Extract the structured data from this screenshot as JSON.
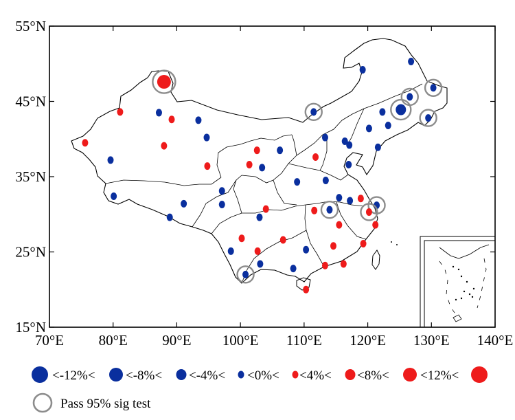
{
  "map": {
    "lat_ticks": [
      {
        "lat": 55,
        "label": "55°N"
      },
      {
        "lat": 45,
        "label": "45°N"
      },
      {
        "lat": 35,
        "label": "35°N"
      },
      {
        "lat": 25,
        "label": "25°N"
      },
      {
        "lat": 15,
        "label": "15°N"
      }
    ],
    "lon_ticks": [
      {
        "lon": 70,
        "label": "70°E"
      },
      {
        "lon": 80,
        "label": "80°E"
      },
      {
        "lon": 90,
        "label": "90°E"
      },
      {
        "lon": 100,
        "label": "100°E"
      },
      {
        "lon": 110,
        "label": "110°E"
      },
      {
        "lon": 120,
        "label": "120°E"
      },
      {
        "lon": 130,
        "label": "130°E"
      },
      {
        "lon": 140,
        "label": "140°E"
      }
    ],
    "lon_range": [
      70,
      140
    ],
    "lat_range": [
      15,
      55
    ],
    "colors": {
      "negative": "#0a2f9e",
      "positive": "#ee1b1b",
      "sig_ring": "#8c8c8c",
      "border": "#000000"
    }
  },
  "stations": [
    {
      "lon": 88.0,
      "lat": 47.6,
      "class": "8-12pos",
      "sig": true
    },
    {
      "lon": 81.1,
      "lat": 43.6,
      "class": "0-4pos",
      "sig": false
    },
    {
      "lon": 75.6,
      "lat": 39.5,
      "class": "0-4pos",
      "sig": false
    },
    {
      "lon": 87.2,
      "lat": 43.5,
      "class": "0-4neg",
      "sig": false
    },
    {
      "lon": 89.2,
      "lat": 42.6,
      "class": "0-4pos",
      "sig": false
    },
    {
      "lon": 93.4,
      "lat": 42.5,
      "class": "0-4neg",
      "sig": false
    },
    {
      "lon": 88.0,
      "lat": 39.1,
      "class": "0-4pos",
      "sig": false
    },
    {
      "lon": 94.7,
      "lat": 40.2,
      "class": "0-4neg",
      "sig": false
    },
    {
      "lon": 94.8,
      "lat": 36.4,
      "class": "0-4pos",
      "sig": false
    },
    {
      "lon": 79.6,
      "lat": 37.2,
      "class": "0-4neg",
      "sig": false
    },
    {
      "lon": 80.1,
      "lat": 32.4,
      "class": "0-4neg",
      "sig": false
    },
    {
      "lon": 91.1,
      "lat": 31.4,
      "class": "0-4neg",
      "sig": false
    },
    {
      "lon": 88.9,
      "lat": 29.6,
      "class": "0-4neg",
      "sig": false
    },
    {
      "lon": 97.1,
      "lat": 33.1,
      "class": "0-4neg",
      "sig": false
    },
    {
      "lon": 97.1,
      "lat": 31.3,
      "class": "0-4neg",
      "sig": false
    },
    {
      "lon": 102.6,
      "lat": 38.5,
      "class": "0-4pos",
      "sig": false
    },
    {
      "lon": 101.4,
      "lat": 36.6,
      "class": "0-4pos",
      "sig": false
    },
    {
      "lon": 103.4,
      "lat": 36.2,
      "class": "0-4neg",
      "sig": false
    },
    {
      "lon": 106.2,
      "lat": 38.5,
      "class": "0-4neg",
      "sig": false
    },
    {
      "lon": 108.9,
      "lat": 34.3,
      "class": "0-4neg",
      "sig": false
    },
    {
      "lon": 111.5,
      "lat": 43.6,
      "class": "0-4neg",
      "sig": true
    },
    {
      "lon": 111.8,
      "lat": 37.6,
      "class": "0-4pos",
      "sig": false
    },
    {
      "lon": 113.3,
      "lat": 40.2,
      "class": "0-4neg",
      "sig": false
    },
    {
      "lon": 113.4,
      "lat": 34.5,
      "class": "0-4neg",
      "sig": false
    },
    {
      "lon": 116.4,
      "lat": 39.7,
      "class": "0-4neg",
      "sig": false
    },
    {
      "lon": 117.1,
      "lat": 39.2,
      "class": "0-4neg",
      "sig": false
    },
    {
      "lon": 117.0,
      "lat": 36.6,
      "class": "0-4neg",
      "sig": false
    },
    {
      "lon": 119.2,
      "lat": 49.2,
      "class": "0-4neg",
      "sig": false
    },
    {
      "lon": 126.8,
      "lat": 50.3,
      "class": "0-4neg",
      "sig": false
    },
    {
      "lon": 122.3,
      "lat": 43.6,
      "class": "0-4neg",
      "sig": false
    },
    {
      "lon": 120.2,
      "lat": 41.4,
      "class": "0-4neg",
      "sig": false
    },
    {
      "lon": 123.2,
      "lat": 41.8,
      "class": "0-4neg",
      "sig": false
    },
    {
      "lon": 121.6,
      "lat": 38.9,
      "class": "0-4neg",
      "sig": false
    },
    {
      "lon": 125.2,
      "lat": 43.9,
      "class": "4-8neg",
      "sig": true
    },
    {
      "lon": 126.6,
      "lat": 45.6,
      "class": "0-4neg",
      "sig": true
    },
    {
      "lon": 130.3,
      "lat": 46.8,
      "class": "0-4neg",
      "sig": true
    },
    {
      "lon": 129.5,
      "lat": 42.8,
      "class": "0-4neg",
      "sig": true
    },
    {
      "lon": 100.2,
      "lat": 26.8,
      "class": "0-4pos",
      "sig": false
    },
    {
      "lon": 102.7,
      "lat": 25.1,
      "class": "0-4pos",
      "sig": false
    },
    {
      "lon": 104.0,
      "lat": 30.7,
      "class": "0-4pos",
      "sig": false
    },
    {
      "lon": 103.0,
      "lat": 29.6,
      "class": "0-4neg",
      "sig": false
    },
    {
      "lon": 106.7,
      "lat": 26.6,
      "class": "0-4pos",
      "sig": false
    },
    {
      "lon": 98.5,
      "lat": 25.1,
      "class": "0-4neg",
      "sig": false
    },
    {
      "lon": 100.8,
      "lat": 22.0,
      "class": "0-4neg",
      "sig": true
    },
    {
      "lon": 103.1,
      "lat": 23.4,
      "class": "0-4neg",
      "sig": false
    },
    {
      "lon": 108.3,
      "lat": 22.8,
      "class": "0-4neg",
      "sig": false
    },
    {
      "lon": 110.3,
      "lat": 25.3,
      "class": "0-4neg",
      "sig": false
    },
    {
      "lon": 110.3,
      "lat": 20.0,
      "class": "0-4pos",
      "sig": false
    },
    {
      "lon": 111.6,
      "lat": 30.5,
      "class": "0-4pos",
      "sig": false
    },
    {
      "lon": 114.0,
      "lat": 30.6,
      "class": "0-4neg",
      "sig": true
    },
    {
      "lon": 115.5,
      "lat": 28.6,
      "class": "0-4pos",
      "sig": false
    },
    {
      "lon": 114.6,
      "lat": 25.8,
      "class": "0-4pos",
      "sig": false
    },
    {
      "lon": 113.3,
      "lat": 23.2,
      "class": "0-4pos",
      "sig": false
    },
    {
      "lon": 116.2,
      "lat": 23.4,
      "class": "0-4pos",
      "sig": false
    },
    {
      "lon": 115.5,
      "lat": 32.2,
      "class": "0-4neg",
      "sig": false
    },
    {
      "lon": 117.2,
      "lat": 31.8,
      "class": "0-4neg",
      "sig": false
    },
    {
      "lon": 118.9,
      "lat": 32.1,
      "class": "0-4pos",
      "sig": false
    },
    {
      "lon": 121.4,
      "lat": 31.2,
      "class": "0-4neg",
      "sig": true
    },
    {
      "lon": 120.2,
      "lat": 30.3,
      "class": "0-4pos",
      "sig": true
    },
    {
      "lon": 121.2,
      "lat": 28.6,
      "class": "0-4pos",
      "sig": false
    },
    {
      "lon": 119.3,
      "lat": 26.1,
      "class": "0-4pos",
      "sig": false
    }
  ],
  "legend": {
    "symbols": [
      {
        "class": "lt-12neg",
        "sign": "neg"
      },
      {
        "class": "8-12neg",
        "sign": "neg"
      },
      {
        "class": "4-8neg",
        "sign": "neg"
      },
      {
        "class": "0-4neg",
        "sign": "neg"
      },
      {
        "class": "0-4pos",
        "sign": "pos"
      },
      {
        "class": "4-8pos",
        "sign": "pos"
      },
      {
        "class": "8-12pos",
        "sign": "pos"
      },
      {
        "class": "gt-12pos",
        "sign": "pos"
      }
    ],
    "thresholds": [
      "<-12%<",
      "<-8%<",
      "<-4%<",
      "<0%<",
      "<4%<",
      "<8%<",
      "<12%<"
    ],
    "sig_label": "Pass 95% sig test"
  }
}
